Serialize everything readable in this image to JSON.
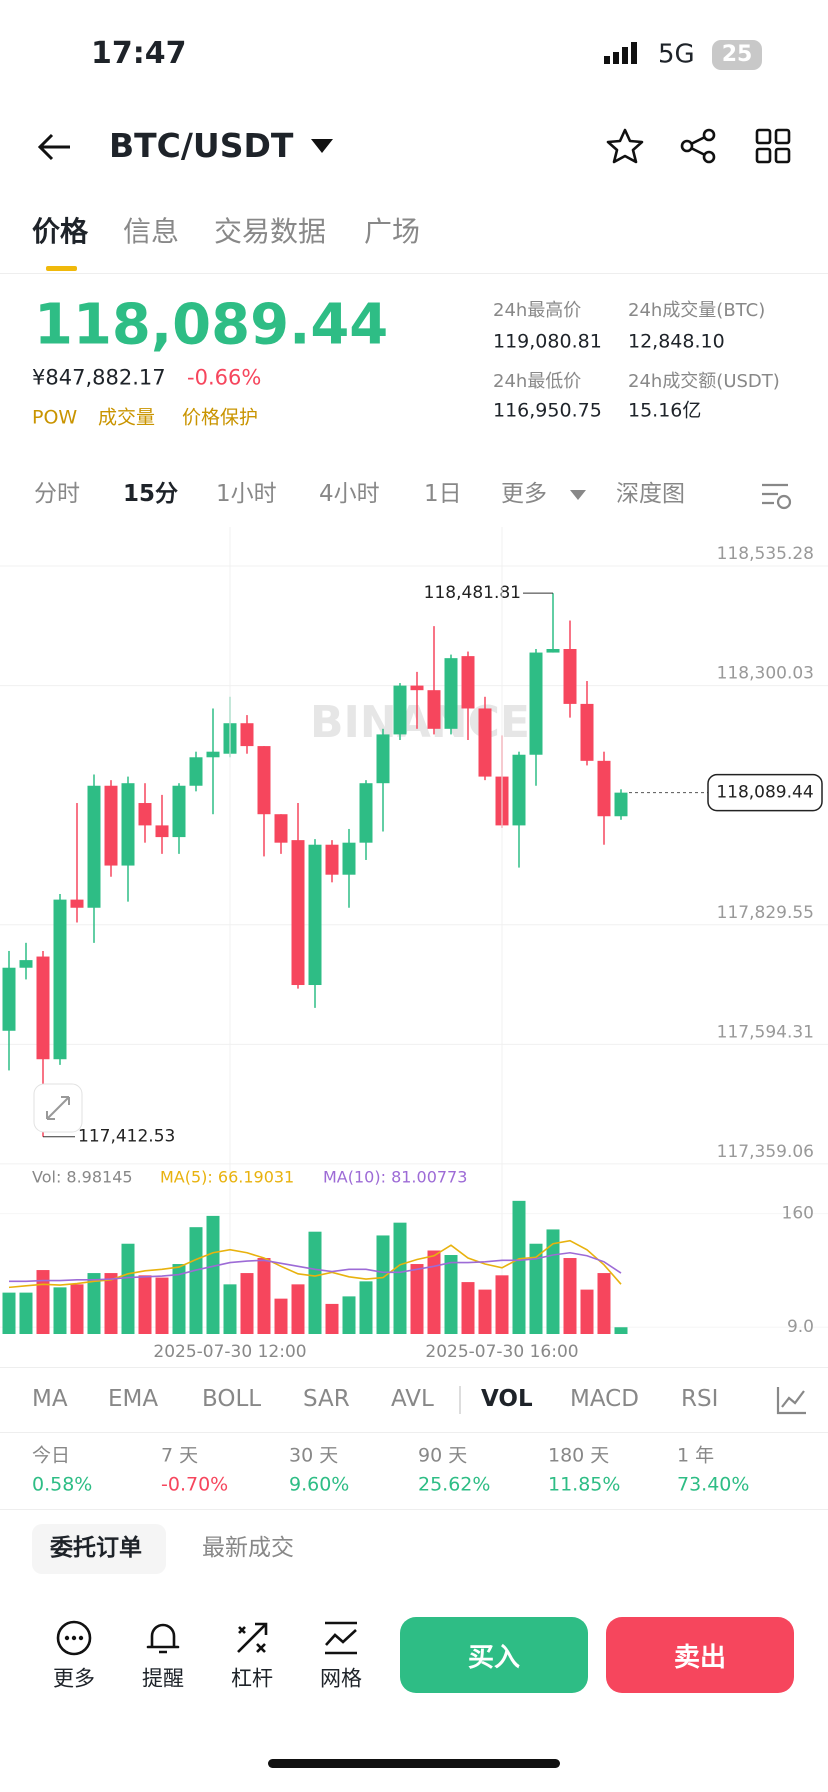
{
  "status_bar": {
    "time": "17:47",
    "network": "5G",
    "battery": "25"
  },
  "header": {
    "pair": "BTC/USDT"
  },
  "tabs": [
    "价格",
    "信息",
    "交易数据",
    "广场"
  ],
  "ticker": {
    "price": "118,089.44",
    "cny": "¥847,882.17",
    "change": "-0.66%",
    "tags": [
      "POW",
      "成交量",
      "价格保护"
    ],
    "stats": [
      {
        "label": "24h最高价",
        "value": "119,080.81"
      },
      {
        "label": "24h成交量(BTC)",
        "value": "12,848.10"
      },
      {
        "label": "24h最低价",
        "value": "116,950.75"
      },
      {
        "label": "24h成交额(USDT)",
        "value": "15.16亿"
      }
    ]
  },
  "intervals": [
    "分时",
    "15分",
    "1小时",
    "4小时",
    "1日",
    "更多",
    "深度图"
  ],
  "chart_data": [
    {
      "type": "candlestick",
      "watermark": "BINANCE",
      "up_color": "#2ebd85",
      "down_color": "#f6465d",
      "grid": true,
      "open": [
        117621,
        117745,
        117767,
        117565,
        117879,
        117863,
        118103,
        117946,
        118069,
        118025,
        118002,
        118103,
        118159,
        118166,
        118226,
        118181,
        118047,
        117996,
        117711,
        117987,
        117928,
        117991,
        118108,
        118204,
        118300,
        118291,
        118215,
        118358,
        118255,
        118121,
        118025,
        118164,
        118365,
        118372,
        118264,
        118152,
        118043
      ],
      "high": [
        117778,
        117794,
        117778,
        117890,
        118069,
        118125,
        118114,
        118121,
        118108,
        118085,
        118108,
        118170,
        118255,
        118278,
        118242,
        118181,
        118047,
        118069,
        117998,
        117996,
        118018,
        118114,
        118215,
        118305,
        118327,
        118417,
        118361,
        118367,
        118278,
        118202,
        118170,
        118372,
        118481.81,
        118428,
        118309,
        118170,
        118096
      ],
      "low": [
        117543,
        117722,
        117412.53,
        117554,
        117834,
        117794,
        117924,
        117875,
        117991,
        117969,
        117969,
        118092,
        118047,
        118159,
        118166,
        117964,
        117969,
        117704,
        117666,
        117913,
        117863,
        117957,
        118013,
        118193,
        118215,
        118204,
        118204,
        118193,
        118114,
        118020,
        117942,
        118103,
        118365,
        118237,
        118143,
        117987,
        118036
      ],
      "close": [
        117745,
        117760,
        117565,
        117879,
        117863,
        118103,
        117946,
        118108,
        118025,
        118002,
        118103,
        118159,
        118170,
        118226,
        118181,
        118047,
        117991,
        117711,
        117987,
        117928,
        117991,
        118108,
        118204,
        118300,
        118291,
        118215,
        118354,
        118255,
        118121,
        118025,
        118164,
        118365,
        118372,
        118264,
        118152,
        118043,
        118089.44
      ],
      "ylim": [
        117353,
        118612
      ],
      "yticks": [
        {
          "value": 118535.28,
          "label": "118,535.28"
        },
        {
          "value": 118300.03,
          "label": "118,300.03"
        },
        {
          "value": 117829.55,
          "label": "117,829.55"
        },
        {
          "value": 117594.31,
          "label": "117,594.31"
        },
        {
          "value": 117359.06,
          "label": "117,359.06"
        }
      ],
      "annotations": [
        {
          "text": "118,481.81"
        },
        {
          "text": "117,412.53"
        }
      ],
      "last_price_label": "118,089.44"
    },
    {
      "type": "bar",
      "categories": [
        null,
        null,
        null,
        null,
        null,
        null,
        null,
        null,
        null,
        null,
        null,
        null,
        null,
        "2025-07-30 12:00",
        null,
        null,
        null,
        null,
        null,
        null,
        null,
        null,
        null,
        null,
        null,
        null,
        null,
        null,
        null,
        "2025-07-30 16:00",
        null,
        null,
        null,
        null,
        null,
        null,
        null
      ],
      "series": [
        {
          "name": "Vol: 8.98145",
          "color": "#888888",
          "values": [
            55,
            55,
            85,
            62,
            66,
            81,
            81,
            120,
            78,
            75,
            93,
            142,
            157,
            66,
            81,
            101,
            47,
            66,
            136,
            40,
            50,
            70,
            131,
            148,
            93,
            111,
            105,
            69,
            59,
            78,
            177,
            120,
            139,
            101,
            59,
            81,
            8.98145
          ]
        },
        {
          "name": "MA(5): 66.19031",
          "color": "#e8b20e",
          "values": [
            62,
            64,
            66,
            65,
            67,
            70,
            72,
            80,
            84,
            86,
            89,
            99,
            108,
            112,
            108,
            101,
            90,
            80,
            77,
            82,
            76,
            73,
            75,
            92,
            99,
            104,
            118,
            101,
            93,
            88,
            100,
            102,
            120,
            124,
            112,
            92,
            66.19031
          ]
        },
        {
          "name": "MA(10): 81.00773",
          "color": "#9d6bd6",
          "values": [
            70,
            70,
            71,
            71,
            72,
            72,
            73,
            75,
            76,
            77,
            79,
            85,
            90,
            95,
            97,
            98,
            94,
            90,
            86,
            83,
            86,
            86,
            82,
            82,
            86,
            90,
            95,
            95,
            96,
            98,
            98,
            100,
            105,
            108,
            104,
            96,
            81.00773
          ]
        }
      ],
      "ylim": [
        0,
        222
      ],
      "yticks": [
        {
          "value": 9,
          "label": "9.0"
        },
        160
      ]
    }
  ],
  "indicators": [
    "MA",
    "EMA",
    "BOLL",
    "SAR",
    "AVL",
    "VOL",
    "MACD",
    "RSI"
  ],
  "performance": [
    {
      "label": "今日",
      "value": "0.58%"
    },
    {
      "label": "7 天",
      "value": "-0.70%"
    },
    {
      "label": "30 天",
      "value": "9.60%"
    },
    {
      "label": "90 天",
      "value": "25.62%"
    },
    {
      "label": "180 天",
      "value": "11.85%"
    },
    {
      "label": "1 年",
      "value": "73.40%"
    }
  ],
  "order_tabs": [
    "委托订单",
    "最新成交"
  ],
  "bottom_bar": {
    "tools": [
      "更多",
      "提醒",
      "杠杆",
      "网格"
    ],
    "buy": "买入",
    "sell": "卖出"
  }
}
